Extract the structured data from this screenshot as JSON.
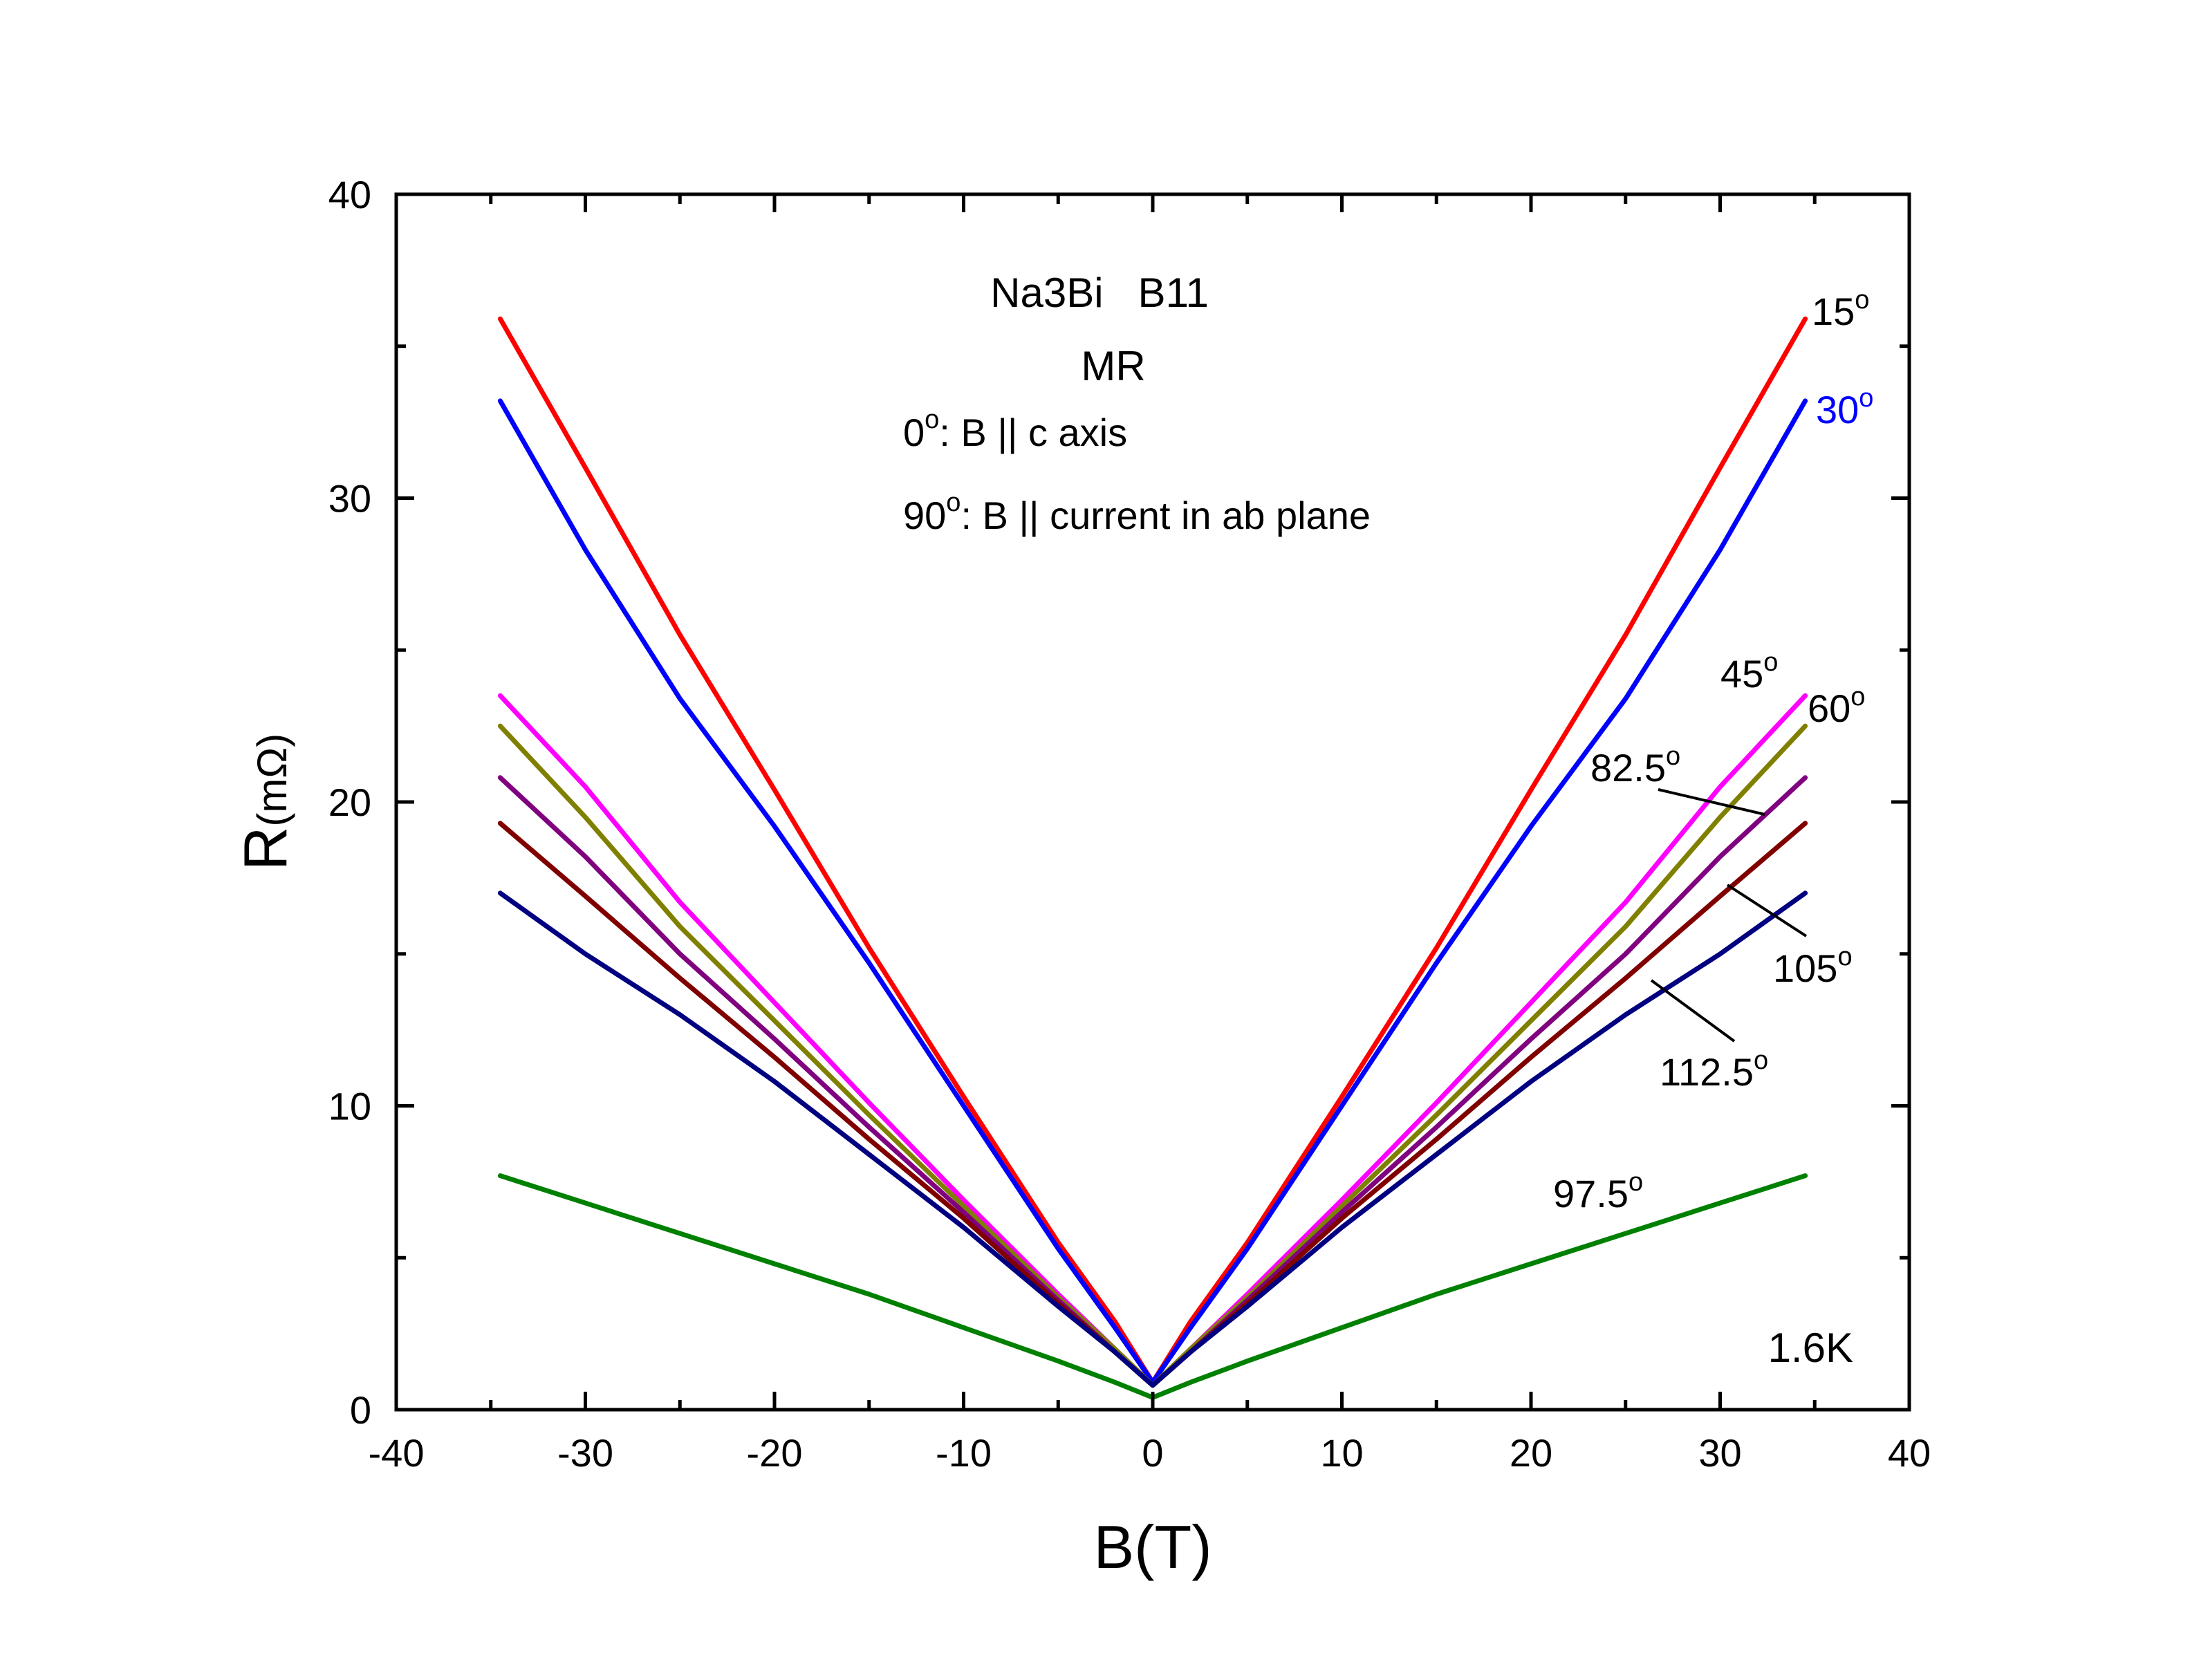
{
  "chart_data": {
    "type": "line",
    "title": "",
    "xlabel": "B(T)",
    "ylabel_main": "R",
    "ylabel_unit": "(mΩ)",
    "xlim": [
      -40,
      40
    ],
    "ylim": [
      0,
      40
    ],
    "xticks": [
      -40,
      -30,
      -20,
      -10,
      0,
      10,
      20,
      30,
      40
    ],
    "yticks": [
      0,
      10,
      20,
      30,
      40
    ],
    "xtick_labels": [
      "-40",
      "-30",
      "-20",
      "-10",
      "0",
      "10",
      "20",
      "30",
      "40"
    ],
    "ytick_labels": [
      "0",
      "10",
      "20",
      "30",
      "40"
    ],
    "grid": false,
    "annotations": {
      "sample": "Na3Bi   B11",
      "mode": "MR",
      "def0_main": "0",
      "def0_sup": "o",
      "def0_rest": ": B || c axis",
      "def90_main": "90",
      "def90_sup": "o",
      "def90_rest": ": B || current in ab plane",
      "temperature": "1.6K"
    },
    "series": [
      {
        "angle": "15",
        "color": "#ff0000",
        "x": [
          -34.5,
          -30,
          -25,
          -20,
          -15,
          -10,
          -5,
          -2,
          0,
          2,
          5,
          10,
          15,
          20,
          25,
          30,
          34.5
        ],
        "y": [
          35.9,
          31.0,
          25.5,
          20.4,
          15.2,
          10.3,
          5.5,
          2.9,
          0.9,
          2.9,
          5.5,
          10.3,
          15.2,
          20.4,
          25.5,
          31.0,
          35.9
        ]
      },
      {
        "angle": "30",
        "color": "#0000ff",
        "x": [
          -34.5,
          -30,
          -25,
          -20,
          -15,
          -10,
          -5,
          -2,
          0,
          2,
          5,
          10,
          15,
          20,
          25,
          30,
          34.5
        ],
        "y": [
          33.2,
          28.3,
          23.4,
          19.2,
          14.7,
          10.0,
          5.3,
          2.7,
          0.9,
          2.7,
          5.3,
          10.0,
          14.7,
          19.2,
          23.4,
          28.3,
          33.2
        ]
      },
      {
        "angle": "45",
        "color": "#ff00ff",
        "x": [
          -34.5,
          -30,
          -25,
          -20,
          -15,
          -10,
          -5,
          -2,
          0,
          2,
          5,
          10,
          15,
          20,
          25,
          30,
          34.5
        ],
        "y": [
          23.5,
          20.5,
          16.7,
          13.4,
          10.1,
          6.9,
          3.8,
          2.0,
          0.8,
          2.0,
          3.8,
          6.9,
          10.1,
          13.4,
          16.7,
          20.5,
          23.5
        ]
      },
      {
        "angle": "60",
        "color": "#808000",
        "x": [
          -34.5,
          -30,
          -25,
          -20,
          -15,
          -10,
          -5,
          -2,
          0,
          2,
          5,
          10,
          15,
          20,
          25,
          30,
          34.5
        ],
        "y": [
          22.5,
          19.5,
          15.9,
          12.8,
          9.7,
          6.7,
          3.7,
          2.0,
          0.8,
          2.0,
          3.7,
          6.7,
          9.7,
          12.8,
          15.9,
          19.5,
          22.5
        ]
      },
      {
        "angle": "82.5",
        "color": "#800080",
        "x": [
          -34.5,
          -30,
          -25,
          -20,
          -15,
          -10,
          -5,
          -2,
          0,
          2,
          5,
          10,
          15,
          20,
          25,
          30,
          34.5
        ],
        "y": [
          20.8,
          18.2,
          15.0,
          12.2,
          9.3,
          6.5,
          3.6,
          1.9,
          0.8,
          1.9,
          3.6,
          6.5,
          9.3,
          12.2,
          15.0,
          18.2,
          20.8
        ]
      },
      {
        "angle": "105",
        "color": "#800000",
        "x": [
          -34.5,
          -30,
          -25,
          -20,
          -15,
          -10,
          -5,
          -2,
          0,
          2,
          5,
          10,
          15,
          20,
          25,
          30,
          34.5
        ],
        "y": [
          19.3,
          16.9,
          14.2,
          11.6,
          8.9,
          6.3,
          3.5,
          1.9,
          0.8,
          1.9,
          3.5,
          6.3,
          8.9,
          11.6,
          14.2,
          16.9,
          19.3
        ]
      },
      {
        "angle": "112.5",
        "color": "#000080",
        "x": [
          -34.5,
          -30,
          -25,
          -20,
          -15,
          -10,
          -5,
          -2,
          0,
          2,
          5,
          10,
          15,
          20,
          25,
          30,
          34.5
        ],
        "y": [
          17.0,
          15.0,
          13.0,
          10.8,
          8.4,
          6.0,
          3.4,
          1.9,
          0.8,
          1.9,
          3.4,
          6.0,
          8.4,
          10.8,
          13.0,
          15.0,
          17.0
        ]
      },
      {
        "angle": "97.5",
        "color": "#008000",
        "x": [
          -34.5,
          -30,
          -25,
          -20,
          -15,
          -10,
          -5,
          -2,
          0,
          2,
          5,
          10,
          15,
          20,
          25,
          30,
          34.5
        ],
        "y": [
          7.7,
          6.8,
          5.8,
          4.8,
          3.8,
          2.7,
          1.6,
          0.9,
          0.4,
          0.9,
          1.6,
          2.7,
          3.8,
          4.8,
          5.8,
          6.8,
          7.7
        ]
      }
    ],
    "curve_labels": [
      {
        "text": "15",
        "sup": "o",
        "color": "#000000"
      },
      {
        "text": "30",
        "sup": "o",
        "color": "#0000ff"
      },
      {
        "text": "45",
        "sup": "o",
        "color": "#000000"
      },
      {
        "text": "60",
        "sup": "o",
        "color": "#000000"
      },
      {
        "text": "82.5",
        "sup": "o",
        "color": "#000000"
      },
      {
        "text": "105",
        "sup": "o",
        "color": "#000000"
      },
      {
        "text": "112.5",
        "sup": "o",
        "color": "#000000"
      },
      {
        "text": "97.5",
        "sup": "o",
        "color": "#000000"
      }
    ]
  }
}
